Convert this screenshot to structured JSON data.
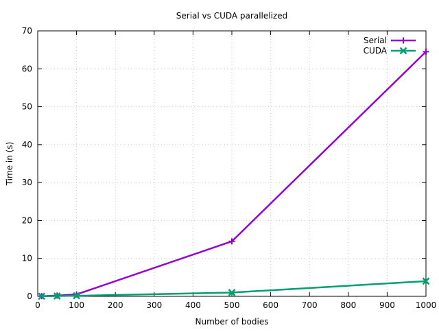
{
  "chart_data": {
    "type": "line",
    "title": "Serial vs CUDA parallelized",
    "xlabel": "Number of bodies",
    "ylabel": "Time in (s)",
    "xlim": [
      0,
      1000
    ],
    "ylim": [
      0,
      70
    ],
    "x_ticks": [
      0,
      100,
      200,
      300,
      400,
      500,
      600,
      700,
      800,
      900,
      1000
    ],
    "y_ticks": [
      0,
      10,
      20,
      30,
      40,
      50,
      60,
      70
    ],
    "grid": true,
    "legend_position": "top-right",
    "series": [
      {
        "name": "Serial",
        "color": "#9400d3",
        "marker": "plus",
        "x": [
          10,
          50,
          100,
          500,
          1000
        ],
        "y": [
          0.05,
          0.2,
          0.5,
          14.5,
          64.5
        ]
      },
      {
        "name": "CUDA",
        "color": "#009e73",
        "marker": "cross",
        "x": [
          10,
          50,
          100,
          500,
          1000
        ],
        "y": [
          0.03,
          0.08,
          0.15,
          1.0,
          4.0
        ]
      }
    ]
  }
}
